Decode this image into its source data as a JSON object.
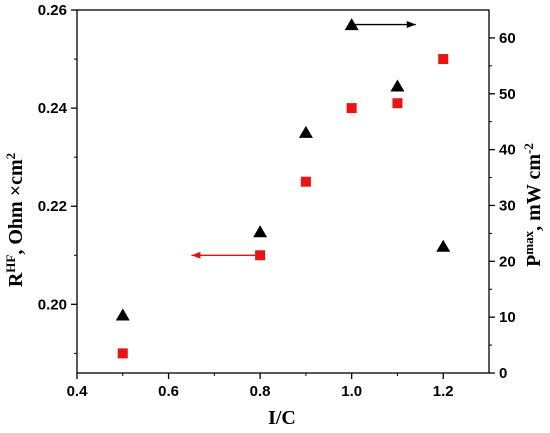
{
  "chart_data": {
    "type": "scatter",
    "xlabel": "I/C",
    "ylabel_left": {
      "base": "R",
      "sup": "HF",
      "rest": ", Ohm ×cm",
      "sup2": "2"
    },
    "ylabel_right": {
      "base": "P",
      "sup": "max",
      "rest": ", mW cm",
      "sup2": "-2"
    },
    "x_axis": {
      "range": [
        0.4,
        1.3
      ],
      "ticks": [
        0.4,
        0.6,
        0.8,
        1.0,
        1.2
      ],
      "tick_labels": [
        "0.4",
        "0.6",
        "0.8",
        "1.0",
        "1.2"
      ]
    },
    "y_left_axis": {
      "range": [
        0.186,
        0.26
      ],
      "ticks": [
        0.2,
        0.22,
        0.24,
        0.26
      ],
      "tick_labels": [
        "0.20",
        "0.22",
        "0.24",
        "0.26"
      ]
    },
    "y_right_axis": {
      "range": [
        0,
        65
      ],
      "ticks": [
        0,
        10,
        20,
        30,
        40,
        50,
        60
      ],
      "tick_labels": [
        "0",
        "10",
        "20",
        "30",
        "40",
        "50",
        "60"
      ]
    },
    "series": [
      {
        "axis": "left",
        "marker": "square",
        "color": "#ee1111",
        "points": [
          {
            "x": 0.5,
            "y": 0.19
          },
          {
            "x": 0.8,
            "y": 0.21
          },
          {
            "x": 0.9,
            "y": 0.225
          },
          {
            "x": 1.0,
            "y": 0.24
          },
          {
            "x": 1.1,
            "y": 0.241
          },
          {
            "x": 1.2,
            "y": 0.25
          }
        ]
      },
      {
        "axis": "right",
        "marker": "triangle",
        "color": "#000000",
        "points": [
          {
            "x": 0.5,
            "y": 10.3
          },
          {
            "x": 0.8,
            "y": 25.2
          },
          {
            "x": 0.9,
            "y": 43.0
          },
          {
            "x": 1.0,
            "y": 62.3
          },
          {
            "x": 1.1,
            "y": 51.3
          },
          {
            "x": 1.2,
            "y": 22.6
          }
        ]
      }
    ],
    "annotations": [
      {
        "type": "arrow",
        "direction": "left",
        "color": "#ee1111",
        "axis": "left",
        "from": {
          "x": 0.79,
          "y": 0.21
        },
        "to": {
          "x": 0.65,
          "y": 0.21
        }
      },
      {
        "type": "arrow",
        "direction": "right",
        "color": "#000000",
        "axis": "right",
        "from": {
          "x": 1.005,
          "y": 62.4
        },
        "to": {
          "x": 1.14,
          "y": 62.4
        }
      }
    ]
  }
}
